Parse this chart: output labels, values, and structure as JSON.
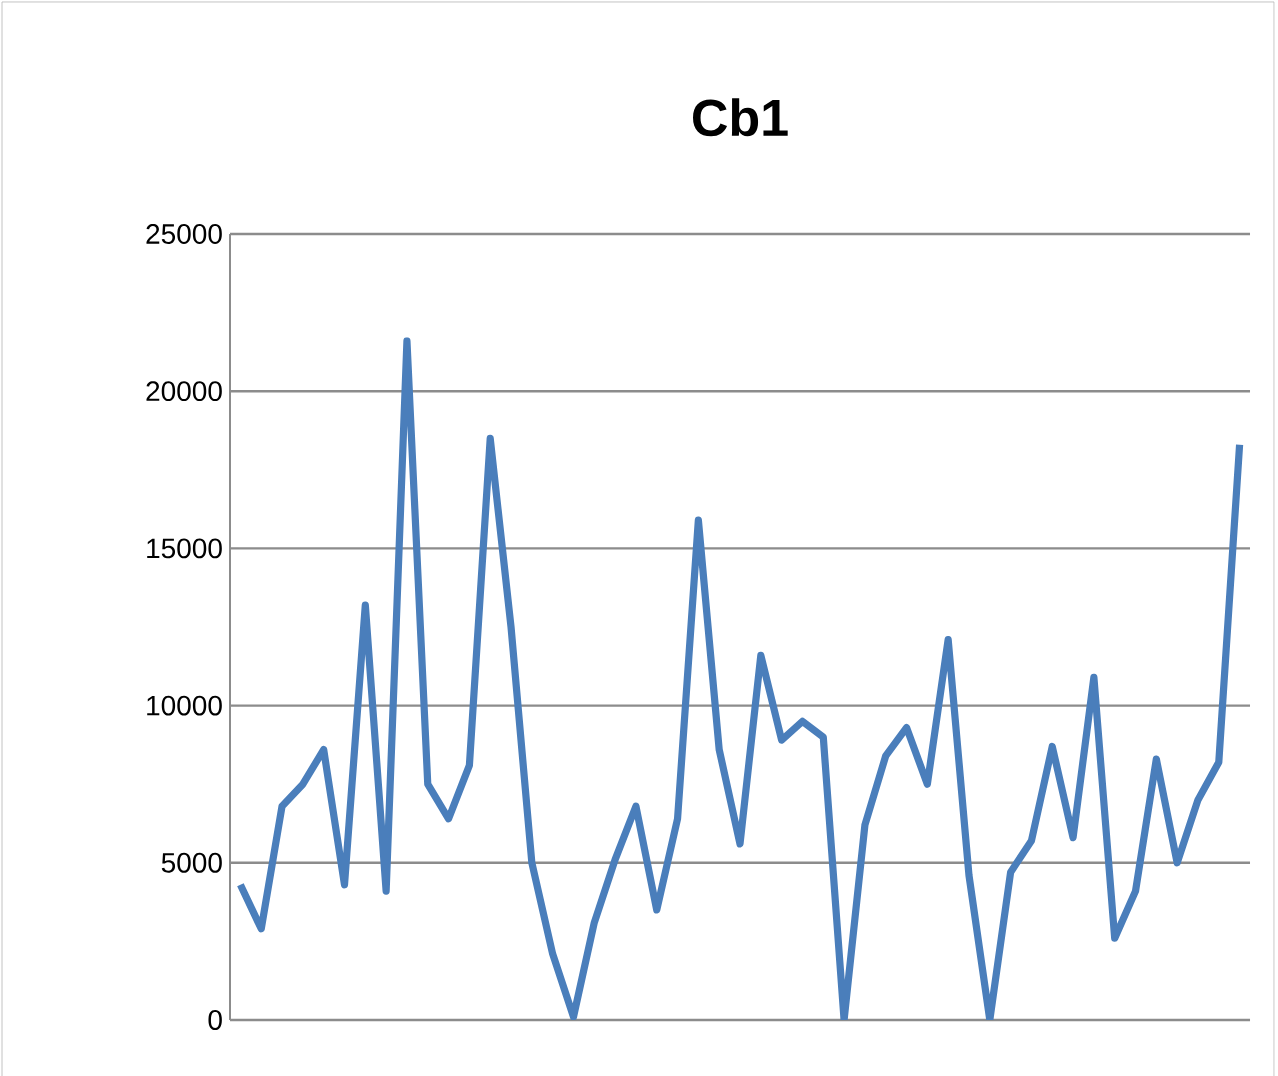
{
  "chart_data": {
    "type": "line",
    "title": "Cb1",
    "categories": [
      null,
      null,
      null,
      null,
      null,
      null,
      null,
      null,
      null,
      null,
      null,
      null,
      null,
      null,
      null,
      null,
      null,
      null,
      null,
      null,
      null,
      null,
      null,
      null,
      null,
      null,
      null,
      null,
      null,
      null,
      null,
      null,
      null,
      null,
      null,
      null,
      null,
      null,
      null,
      null,
      null,
      null,
      null,
      null,
      null,
      null,
      null,
      null,
      null
    ],
    "series": [
      {
        "color": "#4a7ebb",
        "values": [
          4300,
          2900,
          6800,
          7500,
          8600,
          4300,
          13200,
          4100,
          21600,
          7500,
          6400,
          8100,
          18500,
          12500,
          5000,
          2100,
          100,
          3100,
          5100,
          6800,
          3500,
          6400,
          15900,
          8600,
          5600,
          11600,
          8900,
          9500,
          9000,
          0,
          6200,
          8400,
          9300,
          7500,
          12100,
          4600,
          0,
          4700,
          5700,
          8700,
          5800,
          10900,
          2600,
          4100,
          8300,
          5000,
          7000,
          8200,
          18300
        ]
      }
    ],
    "ylim": [
      0,
      25000
    ],
    "yticks": [
      0,
      5000,
      10000,
      15000,
      20000,
      25000
    ],
    "grid": "y",
    "marker": "none",
    "line_style": "solid"
  }
}
